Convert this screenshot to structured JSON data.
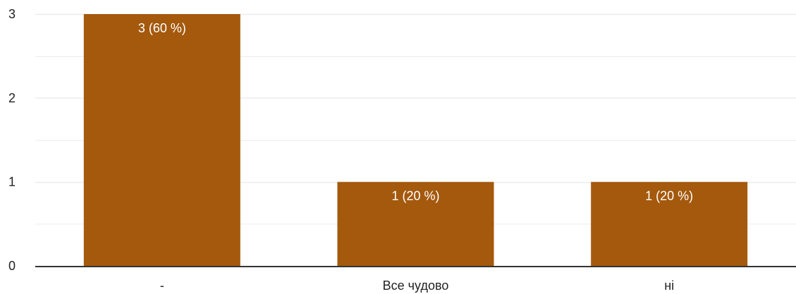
{
  "chart_data": {
    "type": "bar",
    "categories": [
      "-",
      "Все чудово",
      "ні"
    ],
    "values": [
      3,
      1,
      1
    ],
    "data_labels": [
      "3 (60 %)",
      "1 (20 %)",
      "1 (20 %)"
    ],
    "ylim": [
      0,
      3
    ],
    "y_ticks": [
      "0",
      "1",
      "2",
      "3"
    ],
    "grid": true,
    "legend": "none",
    "bar_color": "#a4590d",
    "grid_color": "#ececec",
    "axis_color": "#333333"
  }
}
